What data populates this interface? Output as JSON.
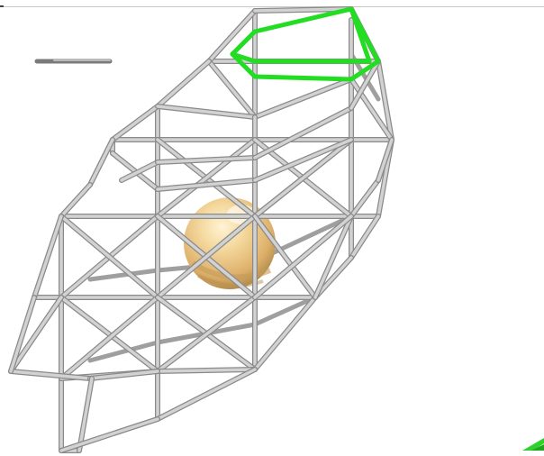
{
  "scene": {
    "description_colors": {
      "background": "#ffffff",
      "cage_stroke": "#c4c4c4",
      "cage_shadow": "#6e6e6e",
      "highlight_stroke": "#22e022",
      "sphere_light": "#fbe6b4",
      "sphere_mid": "#e8bf7a",
      "sphere_dark": "#b08a4c"
    },
    "icons": {
      "scale_bar": "scale-bar-icon",
      "corner_marker": "green-arrow-icon"
    }
  }
}
